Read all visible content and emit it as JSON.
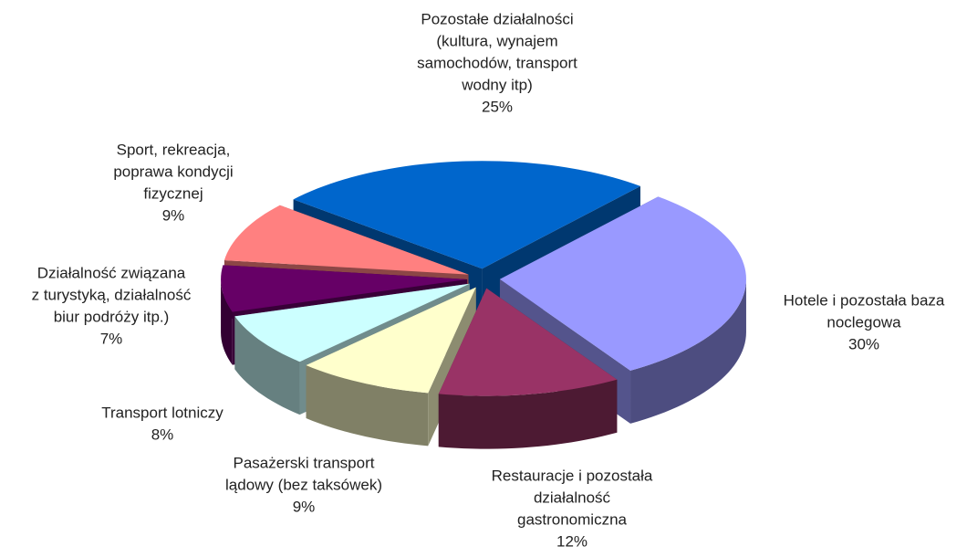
{
  "chart_data": {
    "type": "pie3d",
    "categories": [
      [
        "Pozostałe działalności",
        "(kultura, wynajem",
        "samochodów, transport",
        "wodny itp)"
      ],
      [
        "Hotele i pozostała baza",
        "noclegowa"
      ],
      [
        "Restauracje i pozostała",
        "działalność",
        "gastronomiczna"
      ],
      [
        "Pasażerski transport",
        "lądowy (bez taksówek)"
      ],
      [
        "Transport lotniczy"
      ],
      [
        "Działalność związana",
        "z turystyką, działalność",
        "biur podróży itp.)"
      ],
      [
        "Sport, rekreacja,",
        "poprawa kondycji",
        "fizycznej"
      ]
    ],
    "values": [
      25,
      30,
      12,
      9,
      8,
      7,
      9
    ],
    "value_labels": [
      "25%",
      "30%",
      "12%",
      "9%",
      "8%",
      "7%",
      "9%"
    ],
    "colors": [
      "#0066cc",
      "#9999ff",
      "#993366",
      "#ffffcc",
      "#ccffff",
      "#660066",
      "#ff8080"
    ]
  }
}
